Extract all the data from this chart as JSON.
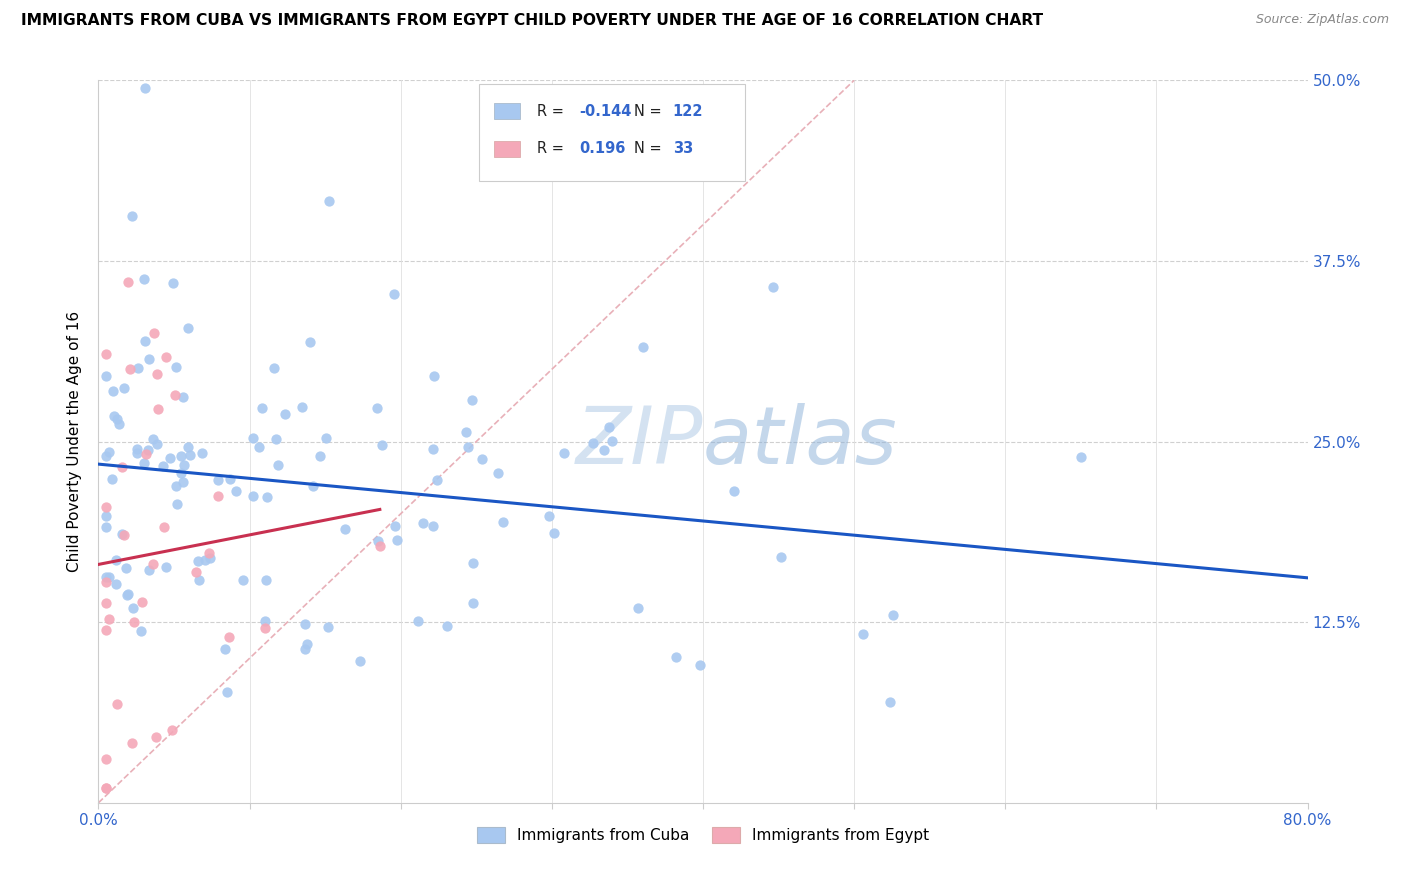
{
  "title": "IMMIGRANTS FROM CUBA VS IMMIGRANTS FROM EGYPT CHILD POVERTY UNDER THE AGE OF 16 CORRELATION CHART",
  "source": "Source: ZipAtlas.com",
  "ylabel": "Child Poverty Under the Age of 16",
  "xlim": [
    0.0,
    0.8
  ],
  "ylim": [
    0.0,
    0.5
  ],
  "xtick_positions": [
    0.0,
    0.1,
    0.2,
    0.3,
    0.4,
    0.5,
    0.6,
    0.7,
    0.8
  ],
  "xtick_labels": [
    "0.0%",
    "",
    "",
    "",
    "",
    "",
    "",
    "",
    "80.0%"
  ],
  "ytick_positions": [
    0.0,
    0.125,
    0.25,
    0.375,
    0.5
  ],
  "ytick_labels": [
    "",
    "12.5%",
    "25.0%",
    "37.5%",
    "50.0%"
  ],
  "R_cuba": -0.144,
  "N_cuba": 122,
  "R_egypt": 0.196,
  "N_egypt": 33,
  "cuba_color": "#a8c8f0",
  "egypt_color": "#f4a8b8",
  "cuba_line_color": "#1a56c4",
  "egypt_line_color": "#c83050",
  "diag_color": "#e8b0b8",
  "watermark": "ZIPatlas",
  "legend_label_cuba": "Immigrants from Cuba",
  "legend_label_egypt": "Immigrants from Egypt"
}
